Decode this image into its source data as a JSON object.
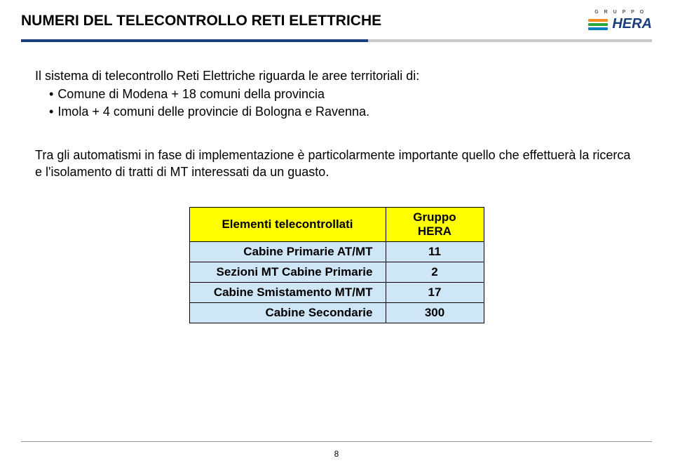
{
  "title": "NUMERI DEL TELECONTROLLO RETI ELETTRICHE",
  "title_fontsize": 21,
  "logo": {
    "gruppo": "G R U P P O",
    "brand": "HERA"
  },
  "para1": "Il sistema di telecontrollo Reti Elettriche riguarda le aree territoriali di:",
  "bullets": [
    "Comune di Modena + 18 comuni della provincia",
    "Imola + 4 comuni delle provincie di Bologna e Ravenna."
  ],
  "para2": "Tra gli automatismi in fase di implementazione è particolarmente importante quello che effettuerà la ricerca e l'isolamento di tratti di MT interessati da un guasto.",
  "body_fontsize": 18,
  "table": {
    "header": [
      "Elementi  telecontrollati",
      "Gruppo HERA"
    ],
    "header_bg": "#ffff00",
    "cell_bg": "#cfe6f7",
    "border_color": "#000000",
    "fontsize": 17,
    "rows": [
      {
        "label": "Cabine Primarie AT/MT",
        "value": "11"
      },
      {
        "label": "Sezioni MT Cabine Primarie",
        "value": "2"
      },
      {
        "label": "Cabine Smistamento MT/MT",
        "value": "17"
      },
      {
        "label": "Cabine Secondarie",
        "value": "300"
      }
    ]
  },
  "page_number": "8",
  "colors": {
    "title_blue": "#1a3d7c",
    "underline_blue": "#1a3d7c",
    "underline_gray": "#c8c8c8",
    "background": "#ffffff"
  }
}
